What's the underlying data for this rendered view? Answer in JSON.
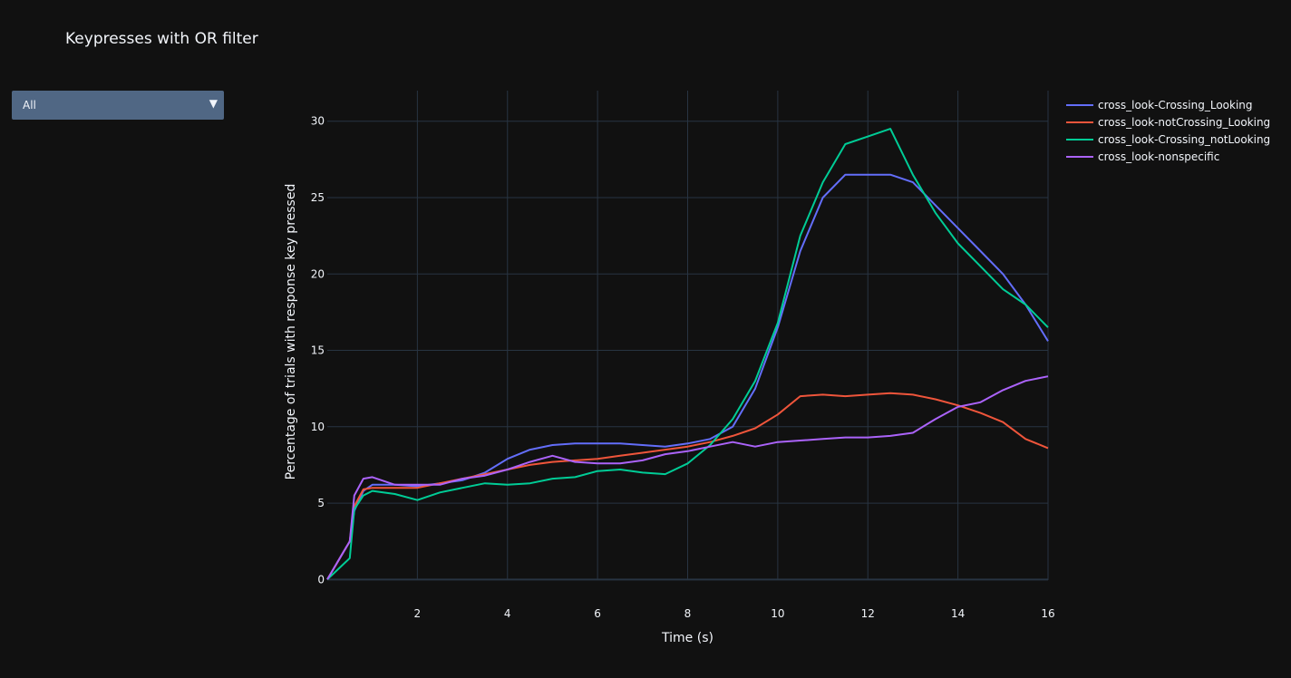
{
  "title": "Keypresses with OR filter",
  "dropdown": {
    "selected": "All",
    "arrow": "▼"
  },
  "colors": {
    "background": "#111111",
    "grid": "#283442",
    "text": "#f2f5fa",
    "dropdown_bg": "#506784"
  },
  "chart_data": {
    "type": "line",
    "xlabel": "Time (s)",
    "ylabel": "Percentage of trials with response key pressed",
    "xlim": [
      0,
      16
    ],
    "ylim": [
      -1.7,
      32
    ],
    "xticks": [
      2,
      4,
      6,
      8,
      10,
      12,
      14,
      16
    ],
    "yticks": [
      0,
      5,
      10,
      15,
      20,
      25,
      30
    ],
    "grid": true,
    "legend_position": "top-right",
    "x": [
      0,
      0.5,
      0.6,
      0.8,
      1,
      1.5,
      2,
      2.5,
      3,
      3.5,
      4,
      4.5,
      5,
      5.5,
      6,
      6.5,
      7,
      7.5,
      8,
      8.5,
      9,
      9.5,
      10,
      10.5,
      11,
      11.5,
      12,
      12.5,
      13,
      13.5,
      14,
      14.5,
      15,
      15.5,
      16
    ],
    "series": [
      {
        "name": "cross_look-Crossing_Looking",
        "color": "#636efa",
        "values": [
          0,
          2.5,
          4.5,
          5.8,
          6.2,
          6.2,
          6.1,
          6.3,
          6.5,
          7.0,
          7.9,
          8.5,
          8.8,
          8.9,
          8.9,
          8.9,
          8.8,
          8.7,
          8.9,
          9.2,
          10.0,
          12.5,
          16.5,
          21.5,
          25.0,
          26.5,
          26.5,
          26.5,
          26.0,
          24.5,
          23.0,
          21.5,
          20.0,
          18.0,
          15.6
        ]
      },
      {
        "name": "cross_look-notCrossing_Looking",
        "color": "#EF553B",
        "values": [
          0,
          2.5,
          4.8,
          5.9,
          6.0,
          6.0,
          6.0,
          6.3,
          6.6,
          6.9,
          7.2,
          7.5,
          7.7,
          7.8,
          7.9,
          8.1,
          8.3,
          8.5,
          8.7,
          9.0,
          9.4,
          9.9,
          10.8,
          12.0,
          12.1,
          12.0,
          12.1,
          12.2,
          12.1,
          11.8,
          11.4,
          10.9,
          10.3,
          9.2,
          8.6
        ]
      },
      {
        "name": "cross_look-Crossing_notLooking",
        "color": "#00cc96",
        "values": [
          0,
          1.4,
          4.6,
          5.5,
          5.8,
          5.6,
          5.2,
          5.7,
          6.0,
          6.3,
          6.2,
          6.3,
          6.6,
          6.7,
          7.1,
          7.2,
          7.0,
          6.9,
          7.6,
          8.8,
          10.5,
          13.0,
          16.8,
          22.5,
          26.0,
          28.5,
          29.0,
          29.5,
          26.5,
          24.0,
          22.0,
          20.5,
          19.0,
          18.0,
          16.5
        ]
      },
      {
        "name": "cross_look-nonspecific",
        "color": "#ab63fa",
        "values": [
          0,
          2.5,
          5.5,
          6.6,
          6.7,
          6.2,
          6.2,
          6.2,
          6.6,
          6.8,
          7.2,
          7.7,
          8.1,
          7.7,
          7.6,
          7.6,
          7.8,
          8.2,
          8.4,
          8.7,
          9.0,
          8.7,
          9.0,
          9.1,
          9.2,
          9.3,
          9.3,
          9.4,
          9.6,
          10.5,
          11.3,
          11.6,
          12.4,
          13.0,
          13.3
        ]
      }
    ]
  }
}
